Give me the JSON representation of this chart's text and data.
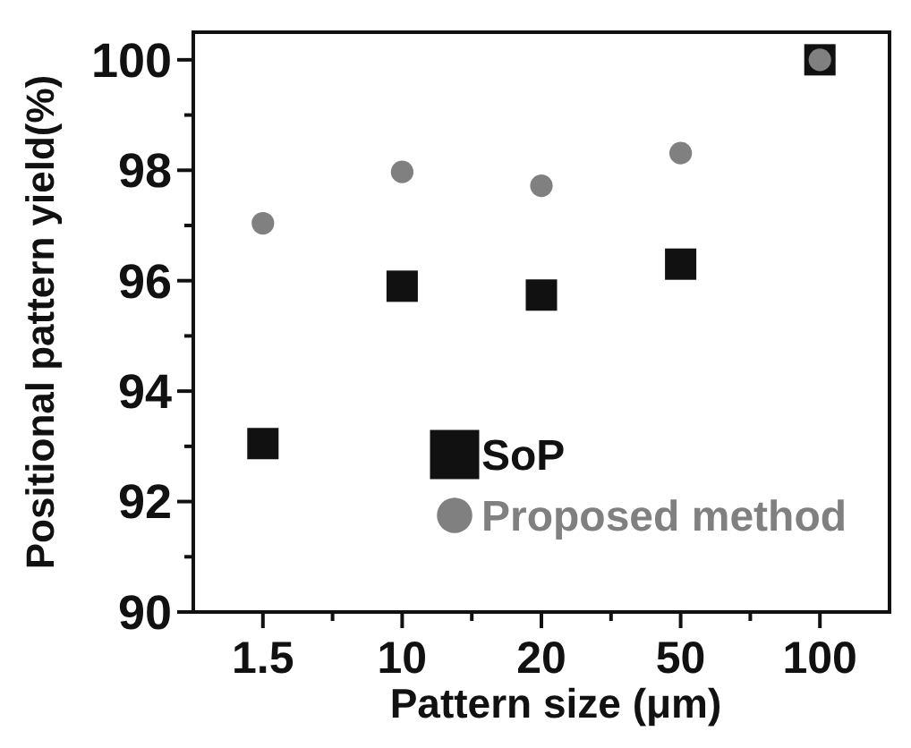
{
  "chart_data": {
    "type": "scatter",
    "xlabel": "Pattern size (μm)",
    "ylabel": "Positional pattern yield(%)",
    "categories": [
      "1.5",
      "10",
      "20",
      "50",
      "100"
    ],
    "series": [
      {
        "name": "SoP",
        "color": "#111111",
        "marker": "square",
        "values": [
          93.05,
          95.9,
          95.74,
          96.3,
          100
        ]
      },
      {
        "name": "Proposed method",
        "color": "#808080",
        "marker": "circle",
        "values": [
          97.04,
          97.97,
          97.72,
          98.31,
          100
        ]
      }
    ],
    "ylim": [
      90,
      100.5
    ],
    "yticks": [
      90,
      {
        "value": 91,
        "label": null
      },
      92,
      {
        "value": 93,
        "label": null
      },
      94,
      {
        "value": 95,
        "label": null
      },
      96,
      {
        "value": 97,
        "label": null
      },
      98,
      {
        "value": 99,
        "label": null
      },
      100
    ],
    "grid": false,
    "legend": "bottom right"
  }
}
